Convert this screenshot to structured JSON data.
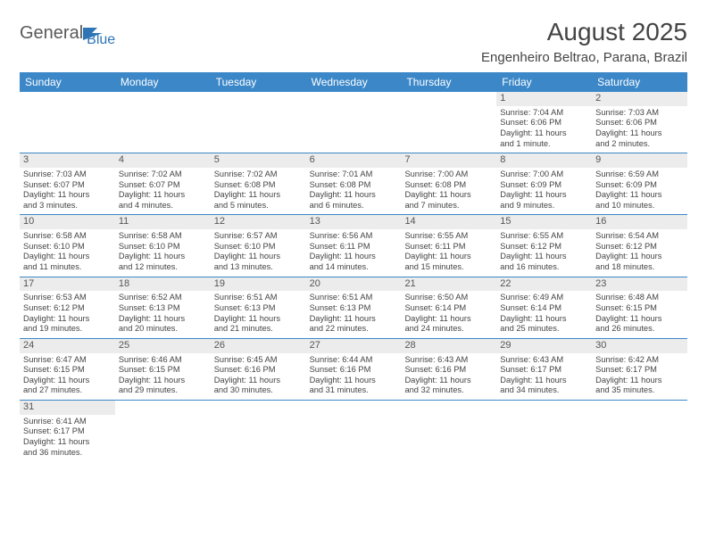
{
  "logo": {
    "text1": "General",
    "text2": "Blue"
  },
  "title": "August 2025",
  "location": "Engenheiro Beltrao, Parana, Brazil",
  "header_bg": "#3b87c8",
  "header_fg": "#ffffff",
  "divider_color": "#3b87c8",
  "daynum_bg": "#ececec",
  "text_color": "#444444",
  "weekdays": [
    "Sunday",
    "Monday",
    "Tuesday",
    "Wednesday",
    "Thursday",
    "Friday",
    "Saturday"
  ],
  "weeks": [
    [
      null,
      null,
      null,
      null,
      null,
      {
        "n": "1",
        "sunrise": "Sunrise: 7:04 AM",
        "sunset": "Sunset: 6:06 PM",
        "daylight1": "Daylight: 11 hours",
        "daylight2": "and 1 minute."
      },
      {
        "n": "2",
        "sunrise": "Sunrise: 7:03 AM",
        "sunset": "Sunset: 6:06 PM",
        "daylight1": "Daylight: 11 hours",
        "daylight2": "and 2 minutes."
      }
    ],
    [
      {
        "n": "3",
        "sunrise": "Sunrise: 7:03 AM",
        "sunset": "Sunset: 6:07 PM",
        "daylight1": "Daylight: 11 hours",
        "daylight2": "and 3 minutes."
      },
      {
        "n": "4",
        "sunrise": "Sunrise: 7:02 AM",
        "sunset": "Sunset: 6:07 PM",
        "daylight1": "Daylight: 11 hours",
        "daylight2": "and 4 minutes."
      },
      {
        "n": "5",
        "sunrise": "Sunrise: 7:02 AM",
        "sunset": "Sunset: 6:08 PM",
        "daylight1": "Daylight: 11 hours",
        "daylight2": "and 5 minutes."
      },
      {
        "n": "6",
        "sunrise": "Sunrise: 7:01 AM",
        "sunset": "Sunset: 6:08 PM",
        "daylight1": "Daylight: 11 hours",
        "daylight2": "and 6 minutes."
      },
      {
        "n": "7",
        "sunrise": "Sunrise: 7:00 AM",
        "sunset": "Sunset: 6:08 PM",
        "daylight1": "Daylight: 11 hours",
        "daylight2": "and 7 minutes."
      },
      {
        "n": "8",
        "sunrise": "Sunrise: 7:00 AM",
        "sunset": "Sunset: 6:09 PM",
        "daylight1": "Daylight: 11 hours",
        "daylight2": "and 9 minutes."
      },
      {
        "n": "9",
        "sunrise": "Sunrise: 6:59 AM",
        "sunset": "Sunset: 6:09 PM",
        "daylight1": "Daylight: 11 hours",
        "daylight2": "and 10 minutes."
      }
    ],
    [
      {
        "n": "10",
        "sunrise": "Sunrise: 6:58 AM",
        "sunset": "Sunset: 6:10 PM",
        "daylight1": "Daylight: 11 hours",
        "daylight2": "and 11 minutes."
      },
      {
        "n": "11",
        "sunrise": "Sunrise: 6:58 AM",
        "sunset": "Sunset: 6:10 PM",
        "daylight1": "Daylight: 11 hours",
        "daylight2": "and 12 minutes."
      },
      {
        "n": "12",
        "sunrise": "Sunrise: 6:57 AM",
        "sunset": "Sunset: 6:10 PM",
        "daylight1": "Daylight: 11 hours",
        "daylight2": "and 13 minutes."
      },
      {
        "n": "13",
        "sunrise": "Sunrise: 6:56 AM",
        "sunset": "Sunset: 6:11 PM",
        "daylight1": "Daylight: 11 hours",
        "daylight2": "and 14 minutes."
      },
      {
        "n": "14",
        "sunrise": "Sunrise: 6:55 AM",
        "sunset": "Sunset: 6:11 PM",
        "daylight1": "Daylight: 11 hours",
        "daylight2": "and 15 minutes."
      },
      {
        "n": "15",
        "sunrise": "Sunrise: 6:55 AM",
        "sunset": "Sunset: 6:12 PM",
        "daylight1": "Daylight: 11 hours",
        "daylight2": "and 16 minutes."
      },
      {
        "n": "16",
        "sunrise": "Sunrise: 6:54 AM",
        "sunset": "Sunset: 6:12 PM",
        "daylight1": "Daylight: 11 hours",
        "daylight2": "and 18 minutes."
      }
    ],
    [
      {
        "n": "17",
        "sunrise": "Sunrise: 6:53 AM",
        "sunset": "Sunset: 6:12 PM",
        "daylight1": "Daylight: 11 hours",
        "daylight2": "and 19 minutes."
      },
      {
        "n": "18",
        "sunrise": "Sunrise: 6:52 AM",
        "sunset": "Sunset: 6:13 PM",
        "daylight1": "Daylight: 11 hours",
        "daylight2": "and 20 minutes."
      },
      {
        "n": "19",
        "sunrise": "Sunrise: 6:51 AM",
        "sunset": "Sunset: 6:13 PM",
        "daylight1": "Daylight: 11 hours",
        "daylight2": "and 21 minutes."
      },
      {
        "n": "20",
        "sunrise": "Sunrise: 6:51 AM",
        "sunset": "Sunset: 6:13 PM",
        "daylight1": "Daylight: 11 hours",
        "daylight2": "and 22 minutes."
      },
      {
        "n": "21",
        "sunrise": "Sunrise: 6:50 AM",
        "sunset": "Sunset: 6:14 PM",
        "daylight1": "Daylight: 11 hours",
        "daylight2": "and 24 minutes."
      },
      {
        "n": "22",
        "sunrise": "Sunrise: 6:49 AM",
        "sunset": "Sunset: 6:14 PM",
        "daylight1": "Daylight: 11 hours",
        "daylight2": "and 25 minutes."
      },
      {
        "n": "23",
        "sunrise": "Sunrise: 6:48 AM",
        "sunset": "Sunset: 6:15 PM",
        "daylight1": "Daylight: 11 hours",
        "daylight2": "and 26 minutes."
      }
    ],
    [
      {
        "n": "24",
        "sunrise": "Sunrise: 6:47 AM",
        "sunset": "Sunset: 6:15 PM",
        "daylight1": "Daylight: 11 hours",
        "daylight2": "and 27 minutes."
      },
      {
        "n": "25",
        "sunrise": "Sunrise: 6:46 AM",
        "sunset": "Sunset: 6:15 PM",
        "daylight1": "Daylight: 11 hours",
        "daylight2": "and 29 minutes."
      },
      {
        "n": "26",
        "sunrise": "Sunrise: 6:45 AM",
        "sunset": "Sunset: 6:16 PM",
        "daylight1": "Daylight: 11 hours",
        "daylight2": "and 30 minutes."
      },
      {
        "n": "27",
        "sunrise": "Sunrise: 6:44 AM",
        "sunset": "Sunset: 6:16 PM",
        "daylight1": "Daylight: 11 hours",
        "daylight2": "and 31 minutes."
      },
      {
        "n": "28",
        "sunrise": "Sunrise: 6:43 AM",
        "sunset": "Sunset: 6:16 PM",
        "daylight1": "Daylight: 11 hours",
        "daylight2": "and 32 minutes."
      },
      {
        "n": "29",
        "sunrise": "Sunrise: 6:43 AM",
        "sunset": "Sunset: 6:17 PM",
        "daylight1": "Daylight: 11 hours",
        "daylight2": "and 34 minutes."
      },
      {
        "n": "30",
        "sunrise": "Sunrise: 6:42 AM",
        "sunset": "Sunset: 6:17 PM",
        "daylight1": "Daylight: 11 hours",
        "daylight2": "and 35 minutes."
      }
    ],
    [
      {
        "n": "31",
        "sunrise": "Sunrise: 6:41 AM",
        "sunset": "Sunset: 6:17 PM",
        "daylight1": "Daylight: 11 hours",
        "daylight2": "and 36 minutes."
      },
      null,
      null,
      null,
      null,
      null,
      null
    ]
  ]
}
